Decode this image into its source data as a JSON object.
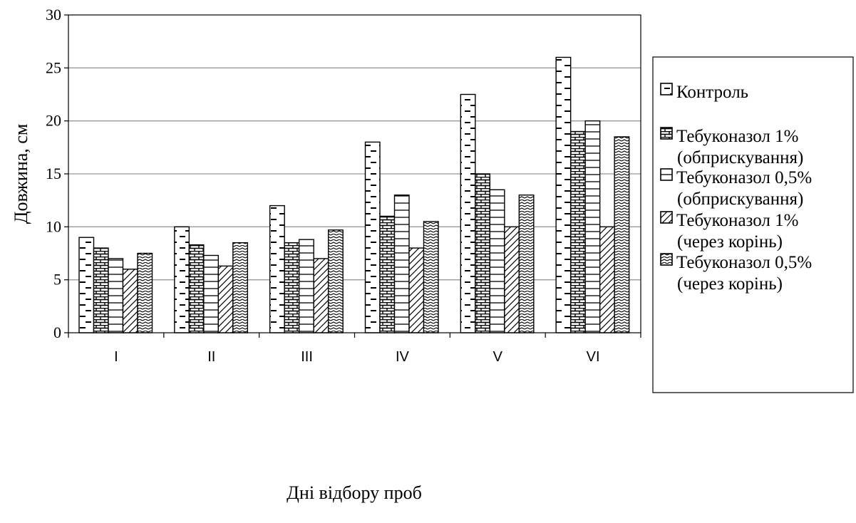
{
  "chart_data": {
    "type": "bar",
    "title": "",
    "xlabel": "Дні відбору проб",
    "ylabel": "Довжина, см",
    "ylim": [
      0,
      30
    ],
    "yticks": [
      0,
      5,
      10,
      15,
      20,
      25,
      30
    ],
    "grid": true,
    "legend_position": "right",
    "categories": [
      "I",
      "II",
      "III",
      "IV",
      "V",
      "VI"
    ],
    "series": [
      {
        "name": "Контроль",
        "legend_lines": [
          "Контроль"
        ],
        "pattern": "ladder-dashes",
        "values": [
          9,
          10,
          12,
          18,
          22.5,
          26
        ]
      },
      {
        "name": "Тебуконазол 1% (обприскування)",
        "legend_lines": [
          "Тебуконазол 1%",
          "(обприскування)"
        ],
        "pattern": "bricks",
        "values": [
          8,
          8.3,
          8.5,
          11,
          15,
          19
        ]
      },
      {
        "name": "Тебуконазол 0,5% (обприскування)",
        "legend_lines": [
          "Тебуконазол 0,5%",
          "(обприскування)"
        ],
        "pattern": "horizontal-lines",
        "values": [
          7,
          7.3,
          8.8,
          13,
          13.5,
          20
        ]
      },
      {
        "name": "Тебуконазол 1% (через корінь)",
        "legend_lines": [
          "Тебуконазол 1%",
          "(через корінь)"
        ],
        "pattern": "diagonal-lines",
        "values": [
          6,
          6.3,
          7,
          8,
          10,
          10
        ]
      },
      {
        "name": "Тебуконазол 0,5% (через корінь)",
        "legend_lines": [
          "Тебуконазол 0,5%",
          "(через корінь)"
        ],
        "pattern": "zigzag",
        "values": [
          7.5,
          8.5,
          9.7,
          10.5,
          13,
          18.5
        ]
      }
    ]
  }
}
